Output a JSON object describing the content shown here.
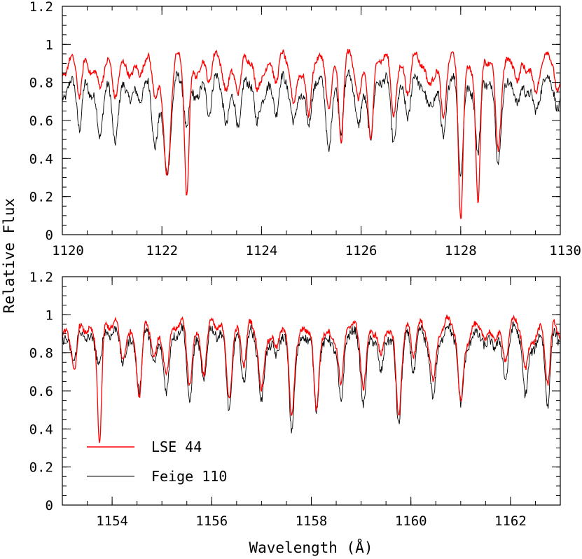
{
  "chart_data": {
    "type": "line",
    "ylabel": "Relative Flux",
    "xlabel": "Wavelength (Å)",
    "colors": {
      "lse44": "#ff0000",
      "feige110": "#000000"
    },
    "legend": {
      "placement": "bottom-left of lower panel",
      "entries": [
        {
          "name": "LSE 44",
          "color": "#ff0000"
        },
        {
          "name": "Feige 110",
          "color": "#000000"
        }
      ]
    },
    "panels": [
      {
        "name": "top",
        "xlim": [
          1120,
          1130
        ],
        "ylim": [
          0,
          1.2
        ],
        "xticks": [
          1120,
          1122,
          1124,
          1126,
          1128,
          1130
        ],
        "xtick_labels": [
          "1120",
          "1122",
          "1124",
          "1126",
          "1128",
          "1130"
        ],
        "yticks": [
          0,
          0.2,
          0.4,
          0.6,
          0.8,
          1,
          1.2
        ],
        "ytick_labels": [
          "0",
          "0.2",
          "0.4",
          "0.6",
          "0.8",
          "1",
          "1.2"
        ],
        "continuum": {
          "lse44": 0.9,
          "feige110": 0.78
        },
        "lines": [
          {
            "w": 1120.35,
            "d_lse": 0.2,
            "d_fei": 0.25,
            "s": 0.05
          },
          {
            "w": 1120.75,
            "d_lse": 0.1,
            "d_fei": 0.25,
            "s": 0.05
          },
          {
            "w": 1121.05,
            "d_lse": 0.2,
            "d_fei": 0.32,
            "s": 0.06
          },
          {
            "w": 1121.55,
            "d_lse": 0.08,
            "d_fei": 0.1,
            "s": 0.05
          },
          {
            "w": 1121.85,
            "d_lse": 0.15,
            "d_fei": 0.3,
            "s": 0.06
          },
          {
            "w": 1122.1,
            "d_lse": 0.55,
            "d_fei": 0.42,
            "s": 0.07
          },
          {
            "w": 1122.5,
            "d_lse": 0.72,
            "d_fei": 0.25,
            "s": 0.045
          },
          {
            "w": 1122.95,
            "d_lse": 0.1,
            "d_fei": 0.15,
            "s": 0.05
          },
          {
            "w": 1123.3,
            "d_lse": 0.12,
            "d_fei": 0.18,
            "s": 0.05
          },
          {
            "w": 1123.55,
            "d_lse": 0.15,
            "d_fei": 0.22,
            "s": 0.05
          },
          {
            "w": 1123.9,
            "d_lse": 0.15,
            "d_fei": 0.2,
            "s": 0.05
          },
          {
            "w": 1124.3,
            "d_lse": 0.1,
            "d_fei": 0.15,
            "s": 0.05
          },
          {
            "w": 1124.65,
            "d_lse": 0.2,
            "d_fei": 0.18,
            "s": 0.05
          },
          {
            "w": 1124.95,
            "d_lse": 0.32,
            "d_fei": 0.25,
            "s": 0.05
          },
          {
            "w": 1125.35,
            "d_lse": 0.18,
            "d_fei": 0.28,
            "s": 0.05
          },
          {
            "w": 1125.6,
            "d_lse": 0.4,
            "d_fei": 0.22,
            "s": 0.045
          },
          {
            "w": 1125.95,
            "d_lse": 0.18,
            "d_fei": 0.2,
            "s": 0.05
          },
          {
            "w": 1126.2,
            "d_lse": 0.38,
            "d_fei": 0.25,
            "s": 0.05
          },
          {
            "w": 1126.65,
            "d_lse": 0.22,
            "d_fei": 0.25,
            "s": 0.05
          },
          {
            "w": 1126.95,
            "d_lse": 0.15,
            "d_fei": 0.15,
            "s": 0.05
          },
          {
            "w": 1127.35,
            "d_lse": 0.1,
            "d_fei": 0.1,
            "s": 0.05
          },
          {
            "w": 1127.65,
            "d_lse": 0.32,
            "d_fei": 0.3,
            "s": 0.05
          },
          {
            "w": 1128.0,
            "d_lse": 0.77,
            "d_fei": 0.42,
            "s": 0.045
          },
          {
            "w": 1128.35,
            "d_lse": 0.77,
            "d_fei": 0.4,
            "s": 0.045
          },
          {
            "w": 1128.75,
            "d_lse": 0.4,
            "d_fei": 0.35,
            "s": 0.05
          },
          {
            "w": 1129.15,
            "d_lse": 0.15,
            "d_fei": 0.15,
            "s": 0.05
          },
          {
            "w": 1129.5,
            "d_lse": 0.12,
            "d_fei": 0.1,
            "s": 0.05
          },
          {
            "w": 1129.95,
            "d_lse": 0.18,
            "d_fei": 0.15,
            "s": 0.05
          }
        ]
      },
      {
        "name": "bottom",
        "xlim": [
          1153,
          1163
        ],
        "ylim": [
          0,
          1.2
        ],
        "xticks": [
          1154,
          1156,
          1158,
          1160,
          1162
        ],
        "xtick_labels": [
          "1154",
          "1156",
          "1158",
          "1160",
          "1162"
        ],
        "yticks": [
          0,
          0.2,
          0.4,
          0.6,
          0.8,
          1,
          1.2
        ],
        "ytick_labels": [
          "0",
          "0.2",
          "0.4",
          "0.6",
          "0.8",
          "1",
          "1.2"
        ],
        "continuum": {
          "lse44": 0.92,
          "feige110": 0.88
        },
        "lines": [
          {
            "w": 1153.25,
            "d_lse": 0.25,
            "d_fei": 0.15,
            "s": 0.05
          },
          {
            "w": 1153.75,
            "d_lse": 0.55,
            "d_fei": 0.1,
            "s": 0.04
          },
          {
            "w": 1154.2,
            "d_lse": 0.12,
            "d_fei": 0.1,
            "s": 0.05
          },
          {
            "w": 1154.55,
            "d_lse": 0.35,
            "d_fei": 0.28,
            "s": 0.05
          },
          {
            "w": 1154.85,
            "d_lse": 0.15,
            "d_fei": 0.15,
            "s": 0.05
          },
          {
            "w": 1155.1,
            "d_lse": 0.2,
            "d_fei": 0.25,
            "s": 0.05
          },
          {
            "w": 1155.55,
            "d_lse": 0.25,
            "d_fei": 0.3,
            "s": 0.05
          },
          {
            "w": 1155.85,
            "d_lse": 0.2,
            "d_fei": 0.2,
            "s": 0.05
          },
          {
            "w": 1156.35,
            "d_lse": 0.3,
            "d_fei": 0.32,
            "s": 0.05
          },
          {
            "w": 1156.65,
            "d_lse": 0.2,
            "d_fei": 0.25,
            "s": 0.05
          },
          {
            "w": 1157.0,
            "d_lse": 0.3,
            "d_fei": 0.32,
            "s": 0.05
          },
          {
            "w": 1157.3,
            "d_lse": 0.15,
            "d_fei": 0.15,
            "s": 0.05
          },
          {
            "w": 1157.6,
            "d_lse": 0.45,
            "d_fei": 0.48,
            "s": 0.05
          },
          {
            "w": 1158.1,
            "d_lse": 0.48,
            "d_fei": 0.44,
            "s": 0.05
          },
          {
            "w": 1158.6,
            "d_lse": 0.32,
            "d_fei": 0.38,
            "s": 0.05
          },
          {
            "w": 1159.05,
            "d_lse": 0.25,
            "d_fei": 0.3,
            "s": 0.05
          },
          {
            "w": 1159.4,
            "d_lse": 0.2,
            "d_fei": 0.25,
            "s": 0.05
          },
          {
            "w": 1159.75,
            "d_lse": 0.4,
            "d_fei": 0.41,
            "s": 0.05
          },
          {
            "w": 1160.05,
            "d_lse": 0.15,
            "d_fei": 0.2,
            "s": 0.05
          },
          {
            "w": 1160.45,
            "d_lse": 0.25,
            "d_fei": 0.3,
            "s": 0.05
          },
          {
            "w": 1161.0,
            "d_lse": 0.38,
            "d_fei": 0.35,
            "s": 0.05
          },
          {
            "w": 1161.5,
            "d_lse": 0.1,
            "d_fei": 0.1,
            "s": 0.05
          },
          {
            "w": 1161.9,
            "d_lse": 0.12,
            "d_fei": 0.18,
            "s": 0.05
          },
          {
            "w": 1162.3,
            "d_lse": 0.22,
            "d_fei": 0.32,
            "s": 0.05
          },
          {
            "w": 1162.75,
            "d_lse": 0.3,
            "d_fei": 0.37,
            "s": 0.05
          }
        ]
      }
    ]
  }
}
